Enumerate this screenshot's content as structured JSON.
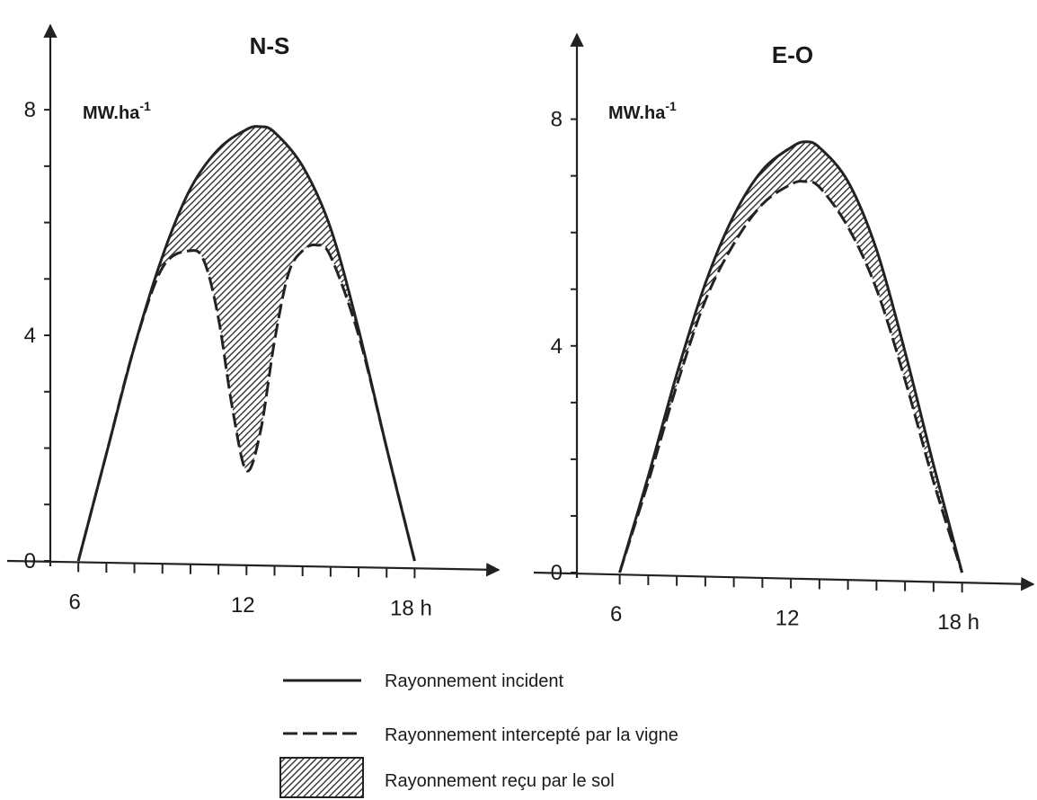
{
  "chart_data": [
    {
      "type": "area",
      "title": "N-S",
      "ylabel": "MW.ha",
      "ylabel_sup": "-1",
      "xunit": "h",
      "xlim": [
        5,
        21
      ],
      "ylim": [
        0,
        9.5
      ],
      "x_ticks": [
        6,
        12,
        18
      ],
      "x_tick_labels": [
        "6",
        "12",
        "18 h"
      ],
      "y_ticks": [
        0,
        4,
        8
      ],
      "y_tick_labels": [
        "0",
        "4",
        "8"
      ],
      "series": [
        {
          "name": "Rayonnement incident",
          "x": [
            6,
            7,
            8,
            9,
            10,
            11,
            12,
            12.5,
            13,
            14,
            15,
            16,
            17,
            18
          ],
          "y": [
            0,
            1.9,
            3.8,
            5.4,
            6.6,
            7.3,
            7.65,
            7.7,
            7.6,
            7.0,
            5.9,
            4.1,
            2.0,
            0
          ]
        },
        {
          "name": "Rayonnement intercepté par la vigne",
          "x": [
            6,
            7,
            8,
            9,
            10,
            10.5,
            11,
            11.5,
            12,
            12.5,
            13,
            13.5,
            14,
            14.5,
            15,
            16,
            17,
            18
          ],
          "y": [
            0,
            1.9,
            3.8,
            5.2,
            5.5,
            5.3,
            4.3,
            2.7,
            1.6,
            2.3,
            3.9,
            5.1,
            5.5,
            5.6,
            5.4,
            4.0,
            2.0,
            0
          ]
        }
      ]
    },
    {
      "type": "area",
      "title": "E-O",
      "ylabel": "MW.ha",
      "ylabel_sup": "-1",
      "xunit": "h",
      "xlim": [
        4.5,
        20.5
      ],
      "ylim": [
        0,
        9.5
      ],
      "x_ticks": [
        6,
        12,
        18
      ],
      "x_tick_labels": [
        "6",
        "12",
        "18 h"
      ],
      "y_ticks": [
        0,
        4,
        8
      ],
      "y_tick_labels": [
        "0",
        "4",
        "8"
      ],
      "series": [
        {
          "name": "Rayonnement incident",
          "x": [
            6,
            7,
            8,
            9,
            10,
            11,
            12,
            12.5,
            13,
            14,
            15,
            16,
            17,
            18
          ],
          "y": [
            0,
            1.7,
            3.5,
            5.1,
            6.3,
            7.1,
            7.5,
            7.6,
            7.5,
            6.9,
            5.7,
            3.9,
            1.9,
            0
          ]
        },
        {
          "name": "Rayonnement intercepté par la vigne",
          "x": [
            6,
            7,
            8,
            9,
            10,
            11,
            12,
            12.5,
            13,
            14,
            15,
            16,
            17,
            18
          ],
          "y": [
            0,
            1.6,
            3.3,
            4.8,
            5.8,
            6.5,
            6.85,
            6.9,
            6.8,
            6.1,
            5.0,
            3.4,
            1.6,
            0
          ]
        }
      ]
    }
  ],
  "legend": {
    "items": [
      {
        "style": "solid",
        "label": "Rayonnement incident"
      },
      {
        "style": "dashed",
        "label": "Rayonnement intercepté par la vigne"
      },
      {
        "style": "hatched",
        "label": "Rayonnement reçu par le sol"
      }
    ]
  },
  "colors": {
    "ink": "#222222",
    "background": "#ffffff"
  }
}
